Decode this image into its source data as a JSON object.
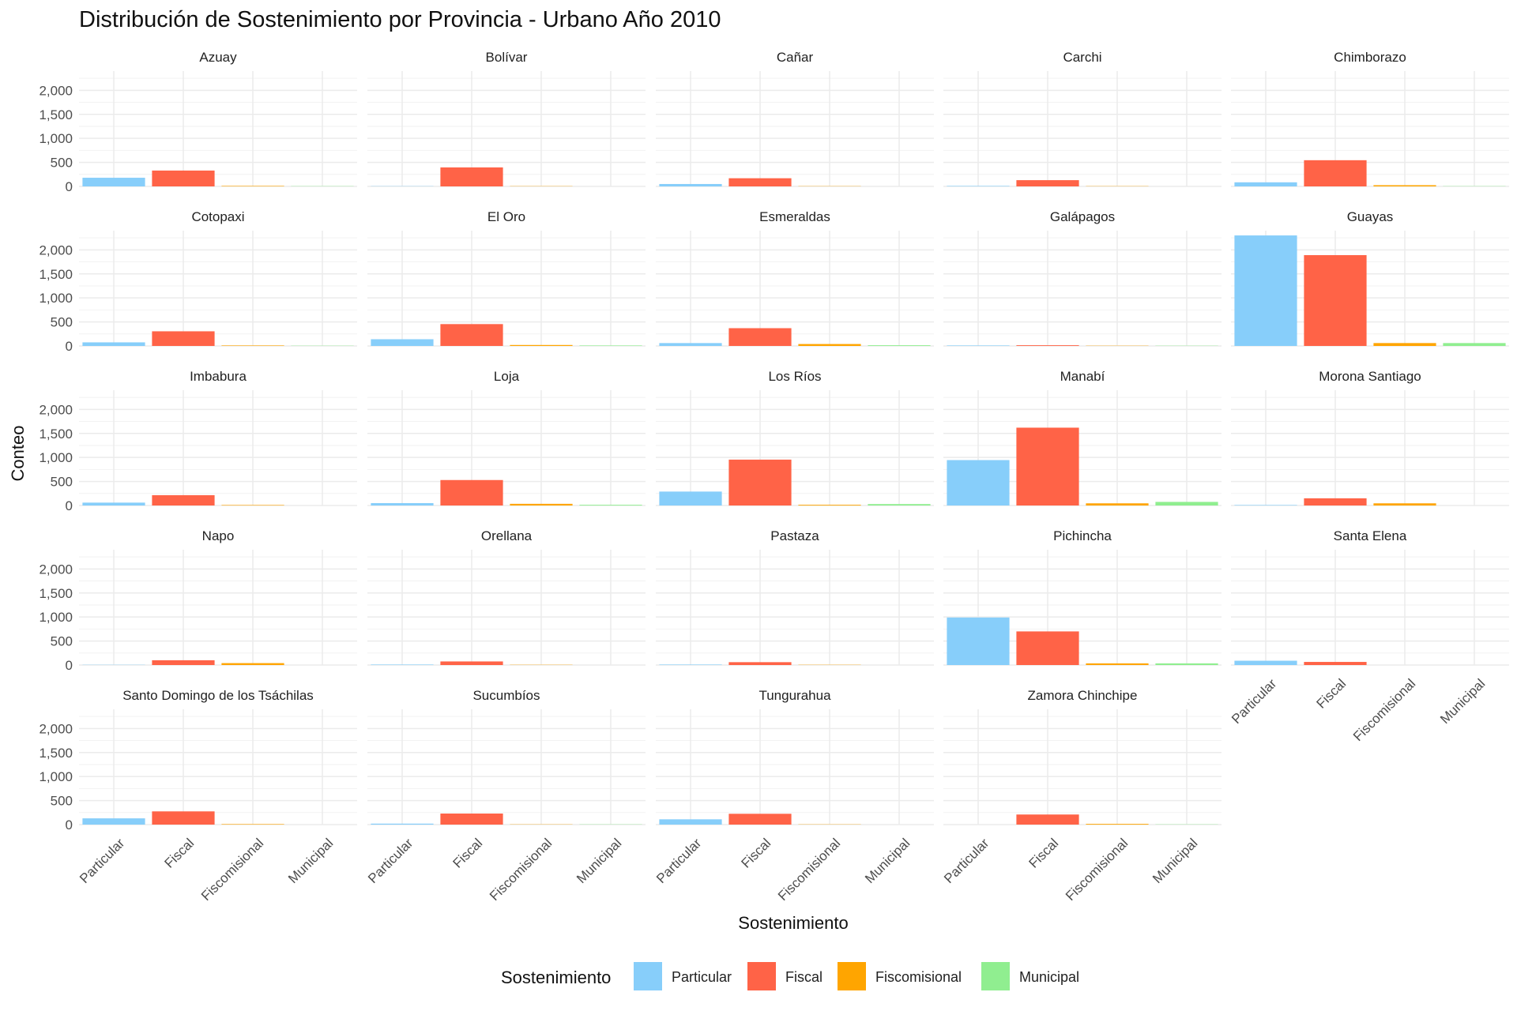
{
  "chart_data": {
    "type": "bar",
    "title": "Distribución de Sostenimiento por Provincia - Urbano Año 2010",
    "xlabel": "Sostenimiento",
    "ylabel": "Conteo",
    "ylim": [
      0,
      2400
    ],
    "yticks": [
      0,
      500,
      1000,
      1500,
      2000
    ],
    "ytick_labels": [
      "0",
      "500",
      "1,000",
      "1,500",
      "2,000"
    ],
    "categories": [
      "Particular",
      "Fiscal",
      "Fiscomisional",
      "Municipal"
    ],
    "colors": {
      "Particular": "#87CEFA",
      "Fiscal": "#FF6347",
      "Fiscomisional": "#FFA500",
      "Municipal": "#90EE90"
    },
    "grid": true,
    "legend": {
      "title": "Sostenimiento",
      "position": "bottom",
      "entries": [
        "Particular",
        "Fiscal",
        "Fiscomisional",
        "Municipal"
      ]
    },
    "facets": [
      {
        "name": "Azuay",
        "values": [
          180,
          330,
          10,
          5
        ]
      },
      {
        "name": "Bolívar",
        "values": [
          5,
          395,
          5,
          0
        ]
      },
      {
        "name": "Cañar",
        "values": [
          50,
          170,
          5,
          0
        ]
      },
      {
        "name": "Carchi",
        "values": [
          10,
          130,
          5,
          0
        ]
      },
      {
        "name": "Chimborazo",
        "values": [
          85,
          545,
          25,
          5
        ]
      },
      {
        "name": "Cotopaxi",
        "values": [
          75,
          305,
          10,
          5
        ]
      },
      {
        "name": "El Oro",
        "values": [
          140,
          455,
          20,
          10
        ]
      },
      {
        "name": "Esmeraldas",
        "values": [
          60,
          370,
          40,
          15
        ]
      },
      {
        "name": "Galápagos",
        "values": [
          10,
          15,
          5,
          5
        ]
      },
      {
        "name": "Guayas",
        "values": [
          2300,
          1890,
          60,
          60
        ]
      },
      {
        "name": "Imbabura",
        "values": [
          60,
          215,
          10,
          0
        ]
      },
      {
        "name": "Loja",
        "values": [
          50,
          530,
          35,
          15
        ]
      },
      {
        "name": "Los Ríos",
        "values": [
          290,
          955,
          15,
          30
        ]
      },
      {
        "name": "Manabí",
        "values": [
          945,
          1620,
          45,
          75
        ]
      },
      {
        "name": "Morona Santiago",
        "values": [
          10,
          150,
          45,
          0
        ]
      },
      {
        "name": "Napo",
        "values": [
          5,
          100,
          40,
          0
        ]
      },
      {
        "name": "Orellana",
        "values": [
          10,
          75,
          5,
          0
        ]
      },
      {
        "name": "Pastaza",
        "values": [
          10,
          60,
          5,
          0
        ]
      },
      {
        "name": "Pichincha",
        "values": [
          990,
          700,
          35,
          35
        ]
      },
      {
        "name": "Santa Elena",
        "values": [
          90,
          65,
          0,
          0
        ]
      },
      {
        "name": "Santo Domingo de los Tsáchilas",
        "values": [
          130,
          275,
          10,
          0
        ]
      },
      {
        "name": "Sucumbíos",
        "values": [
          20,
          230,
          5,
          5
        ]
      },
      {
        "name": "Tungurahua",
        "values": [
          110,
          225,
          5,
          0
        ]
      },
      {
        "name": "Zamora Chinchipe",
        "values": [
          0,
          210,
          15,
          5
        ]
      }
    ]
  }
}
